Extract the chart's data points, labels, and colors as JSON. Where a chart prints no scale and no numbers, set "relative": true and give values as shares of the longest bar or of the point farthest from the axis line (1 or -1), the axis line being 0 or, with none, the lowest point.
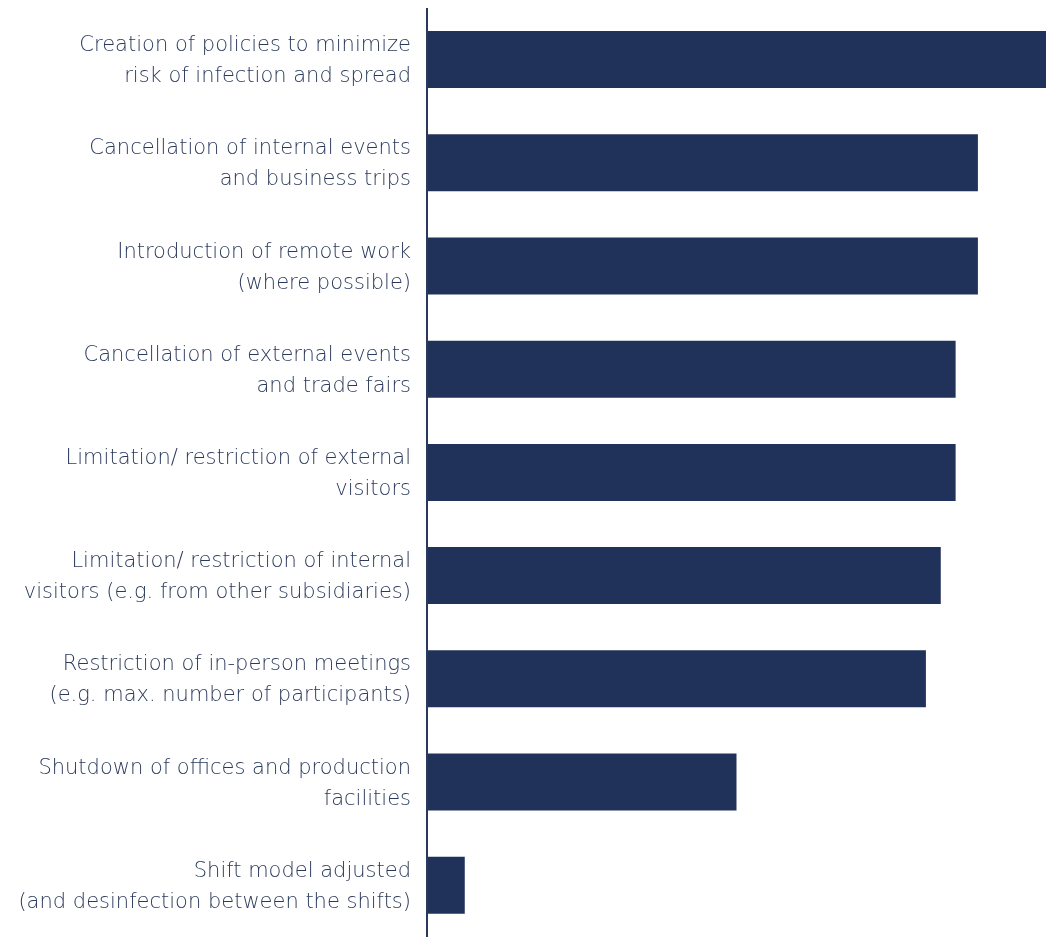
{
  "chart_data": {
    "type": "bar",
    "orientation": "horizontal",
    "relative": true,
    "categories": [
      "Creation of policies to minimize\nrisk of infection and spread",
      "Cancellation of internal events\nand business trips",
      "Introduction of remote work\n(where possible)",
      "Cancellation of external events\nand trade fairs",
      "Limitation/ restriction of external\nvisitors",
      "Limitation/ restriction of internal\nvisitors (e.g. from other subsidiaries)",
      "Restriction of in-person meetings\n(e.g. max. number of participants)",
      "Shutdown of offices and production\nfacilities",
      "Shift model adjusted\n(and desinfection between the shifts)"
    ],
    "values": [
      1,
      0.89,
      0.89,
      0.854,
      0.854,
      0.83,
      0.806,
      0.5,
      0.061
    ],
    "color": "#21325a",
    "grid": false,
    "legend": false
  }
}
